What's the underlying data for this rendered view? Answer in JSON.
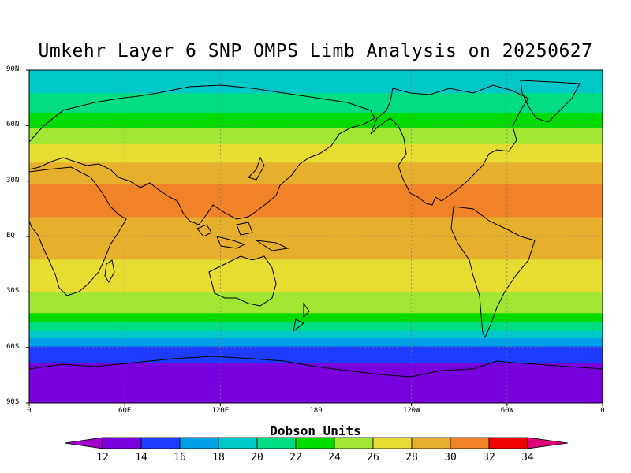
{
  "title": "Umkehr Layer 6 SNP OMPS Limb Analysis on 20250627",
  "lat_labels": [
    "90N",
    "60N",
    "30N",
    "EQ",
    "30S",
    "60S",
    "90S"
  ],
  "lon_labels": [
    "0",
    "60E",
    "120E",
    "180",
    "120W",
    "60W",
    "0"
  ],
  "colorbar": {
    "title": "Dobson Units",
    "labels": [
      "12",
      "14",
      "16",
      "18",
      "20",
      "22",
      "24",
      "26",
      "28",
      "30",
      "32",
      "34"
    ],
    "colors": [
      "#a000c8",
      "#7800dc",
      "#1e3cff",
      "#00a0e6",
      "#00c8c8",
      "#00dc82",
      "#00dc00",
      "#a0e632",
      "#e6dc32",
      "#e6af2d",
      "#f08228",
      "#f00000",
      "#dc0078"
    ]
  },
  "chart_data": {
    "type": "heatmap",
    "x_range_deg_east": [
      0,
      360
    ],
    "y_range_deg_lat": [
      -90,
      90
    ],
    "unit": "Dobson Units",
    "levels": [
      12,
      14,
      16,
      18,
      20,
      22,
      24,
      26,
      28,
      30,
      32,
      34
    ],
    "zonal_profile": [
      {
        "lat": 90,
        "value": 19
      },
      {
        "lat": 80,
        "value": 19.5
      },
      {
        "lat": 72,
        "value": 21
      },
      {
        "lat": 62,
        "value": 23
      },
      {
        "lat": 55,
        "value": 25
      },
      {
        "lat": 45,
        "value": 27
      },
      {
        "lat": 35,
        "value": 29
      },
      {
        "lat": 25,
        "value": 30.5
      },
      {
        "lat": 15,
        "value": 30.3
      },
      {
        "lat": 0,
        "value": 29.3
      },
      {
        "lat": -10,
        "value": 28.3
      },
      {
        "lat": -20,
        "value": 27.2
      },
      {
        "lat": -30,
        "value": 26
      },
      {
        "lat": -40,
        "value": 24.5
      },
      {
        "lat": -48,
        "value": 21.5
      },
      {
        "lat": -55,
        "value": 18
      },
      {
        "lat": -62,
        "value": 15
      },
      {
        "lat": -72,
        "value": 13.5
      },
      {
        "lat": -90,
        "value": 13.2
      }
    ]
  }
}
